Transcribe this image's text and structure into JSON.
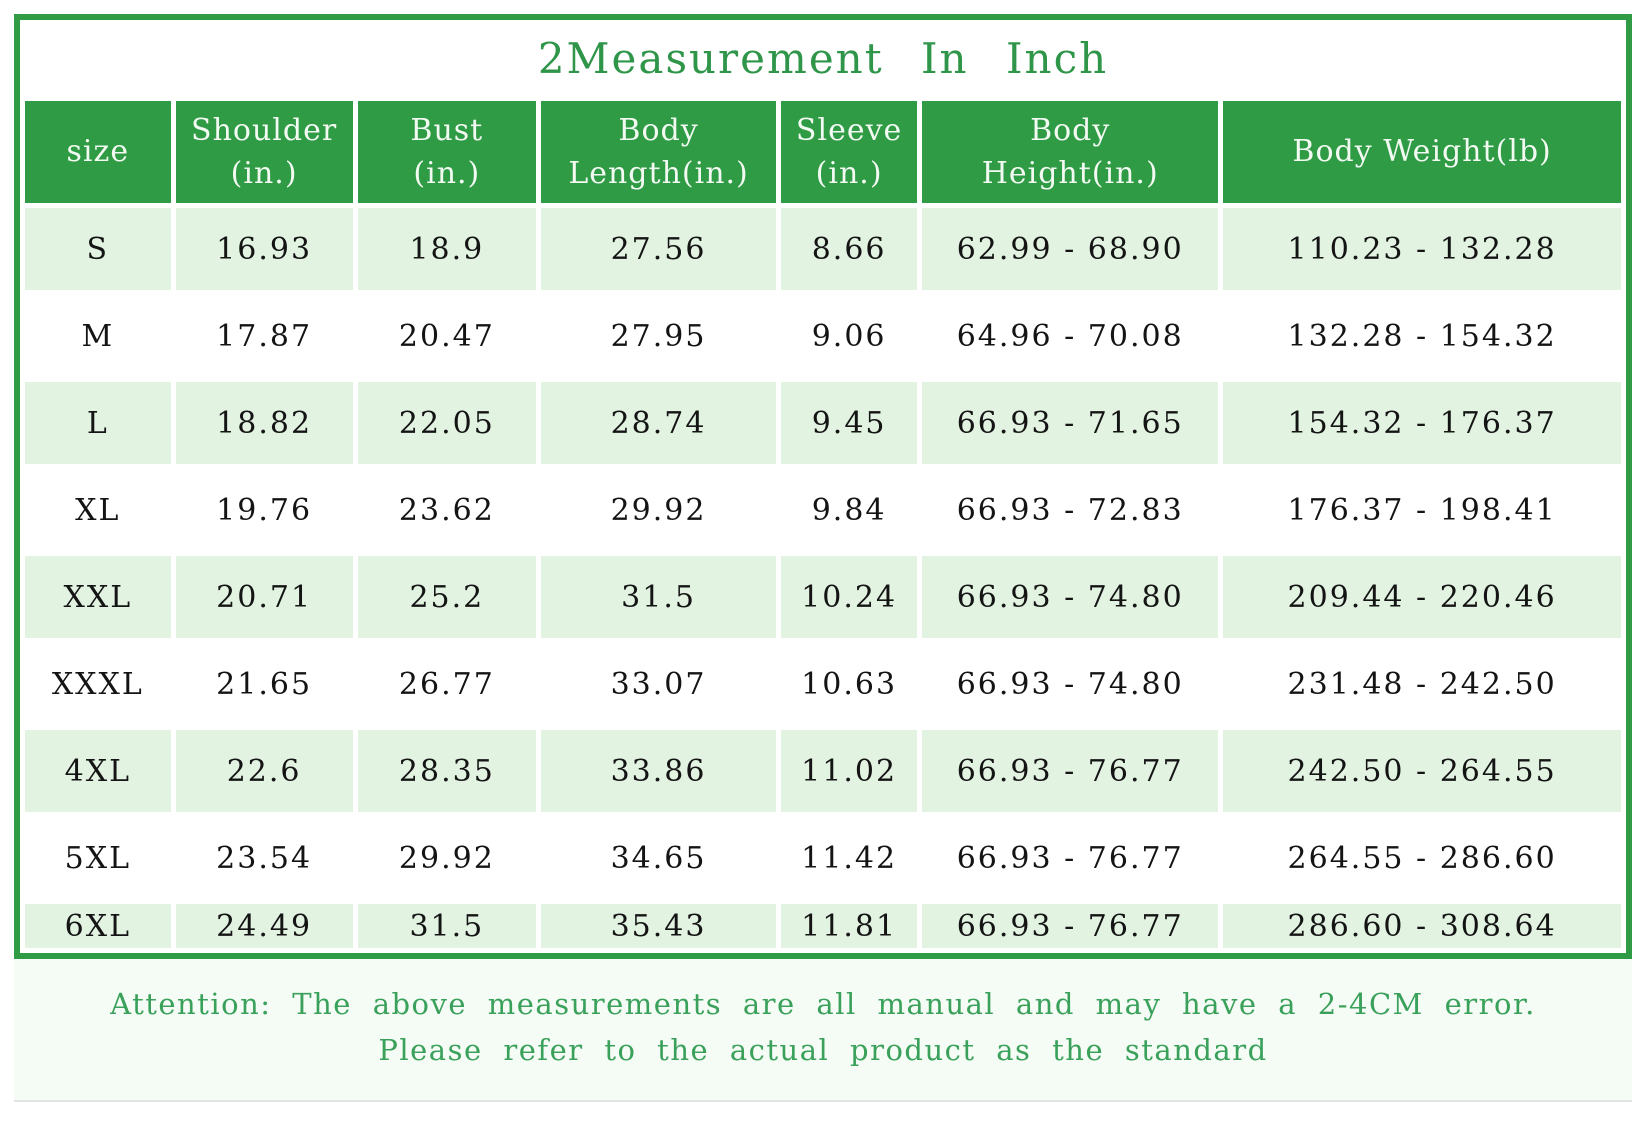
{
  "title": "2Measurement In Inch",
  "table": {
    "columns": [
      {
        "label": "size"
      },
      {
        "label": "Shoulder\n(in.)"
      },
      {
        "label": "Bust\n(in.)"
      },
      {
        "label": "Body\nLength(in.)"
      },
      {
        "label": "Sleeve\n(in.)"
      },
      {
        "label": "Body\nHeight(in.)"
      },
      {
        "label": "Body Weight(lb)"
      }
    ],
    "rows": [
      [
        "S",
        "16.93",
        "18.9",
        "27.56",
        "8.66",
        "62.99 - 68.90",
        "110.23 - 132.28"
      ],
      [
        "M",
        "17.87",
        "20.47",
        "27.95",
        "9.06",
        "64.96 - 70.08",
        "132.28 - 154.32"
      ],
      [
        "L",
        "18.82",
        "22.05",
        "28.74",
        "9.45",
        "66.93 - 71.65",
        "154.32 - 176.37"
      ],
      [
        "XL",
        "19.76",
        "23.62",
        "29.92",
        "9.84",
        "66.93 - 72.83",
        "176.37 - 198.41"
      ],
      [
        "XXL",
        "20.71",
        "25.2",
        "31.5",
        "10.24",
        "66.93 - 74.80",
        "209.44 - 220.46"
      ],
      [
        "XXXL",
        "21.65",
        "26.77",
        "33.07",
        "10.63",
        "66.93 - 74.80",
        "231.48 - 242.50"
      ],
      [
        "4XL",
        "22.6",
        "28.35",
        "33.86",
        "11.02",
        "66.93 - 76.77",
        "242.50 - 264.55"
      ],
      [
        "5XL",
        "23.54",
        "29.92",
        "34.65",
        "11.42",
        "66.93 - 76.77",
        "264.55 - 286.60"
      ],
      [
        "6XL",
        "24.49",
        "31.5",
        "35.43",
        "11.81",
        "66.93 - 76.77",
        "286.60 - 308.64"
      ]
    ]
  },
  "note": {
    "line1": "Attention: The above measurements are all manual and may have a 2-4CM error.",
    "line2": "Please refer to the actual product as the standard"
  },
  "colors": {
    "border_green": "#2f9b45",
    "header_green": "#2f9b45",
    "row_light_green": "#e2f3e2",
    "title_green": "#2e9549",
    "note_green": "#3aa15b",
    "cell_text": "#141414"
  },
  "chart_data": {
    "type": "table",
    "title": "2Measurement In Inch",
    "columns": [
      "size",
      "Shoulder (in.)",
      "Bust (in.)",
      "Body Length(in.)",
      "Sleeve (in.)",
      "Body Height(in.)",
      "Body Weight(lb)"
    ],
    "rows": [
      [
        "S",
        16.93,
        18.9,
        27.56,
        8.66,
        "62.99 - 68.90",
        "110.23 - 132.28"
      ],
      [
        "M",
        17.87,
        20.47,
        27.95,
        9.06,
        "64.96 - 70.08",
        "132.28 - 154.32"
      ],
      [
        "L",
        18.82,
        22.05,
        28.74,
        9.45,
        "66.93 - 71.65",
        "154.32 - 176.37"
      ],
      [
        "XL",
        19.76,
        23.62,
        29.92,
        9.84,
        "66.93 - 72.83",
        "176.37 - 198.41"
      ],
      [
        "XXL",
        20.71,
        25.2,
        31.5,
        10.24,
        "66.93 - 74.80",
        "209.44 - 220.46"
      ],
      [
        "XXXL",
        21.65,
        26.77,
        33.07,
        10.63,
        "66.93 - 74.80",
        "231.48 - 242.50"
      ],
      [
        "4XL",
        22.6,
        28.35,
        33.86,
        11.02,
        "66.93 - 76.77",
        "242.50 - 264.55"
      ],
      [
        "5XL",
        23.54,
        29.92,
        34.65,
        11.42,
        "66.93 - 76.77",
        "264.55 - 286.60"
      ],
      [
        "6XL",
        24.49,
        31.5,
        35.43,
        11.81,
        "66.93 - 76.77",
        "286.60 - 308.64"
      ]
    ],
    "annotations": [
      "Attention: The above measurements are all manual and may have a 2-4CM error.",
      "Please refer to the actual product as the standard"
    ]
  }
}
